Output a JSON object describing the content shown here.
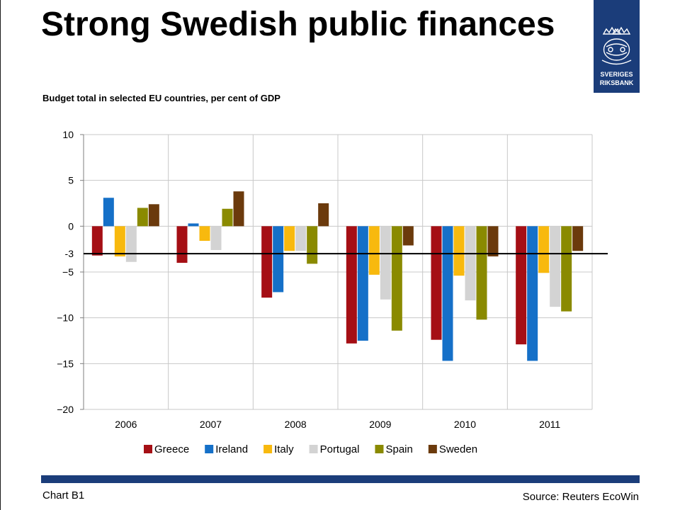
{
  "header": {
    "title": "Strong Swedish public finances",
    "subtitle": "Budget total in selected EU countries, per cent of GDP"
  },
  "logo": {
    "icon": "riksbank-crest-icon",
    "line1": "SVERIGES",
    "line2": "RIKSBANK",
    "color": "#1b3d7a"
  },
  "footer": {
    "chart_label": "Chart B1",
    "source": "Source: Reuters EcoWin"
  },
  "chart_data": {
    "type": "bar",
    "title": "",
    "xlabel": "",
    "ylabel": "",
    "categories": [
      "2006",
      "2007",
      "2008",
      "2009",
      "2010",
      "2011"
    ],
    "ylim": [
      -20,
      10
    ],
    "yticks": [
      10,
      5,
      0,
      -5,
      -10,
      -15,
      -20
    ],
    "grid": true,
    "legend_position": "bottom",
    "reference_line": {
      "value": -3,
      "label": "-3"
    },
    "series": [
      {
        "name": "Greece",
        "color": "#a50f15",
        "values": [
          -3.2,
          -4.0,
          -7.8,
          -12.8,
          -12.4,
          -12.9
        ]
      },
      {
        "name": "Ireland",
        "color": "#1570c8",
        "values": [
          3.1,
          0.3,
          -7.2,
          -12.5,
          -14.7,
          -14.7
        ]
      },
      {
        "name": "Italy",
        "color": "#f8b90e",
        "values": [
          -3.3,
          -1.6,
          -2.7,
          -5.3,
          -5.4,
          -5.1
        ]
      },
      {
        "name": "Portugal",
        "color": "#d3d3d3",
        "values": [
          -3.9,
          -2.6,
          -2.7,
          -8.0,
          -8.1,
          -8.8
        ]
      },
      {
        "name": "Spain",
        "color": "#8a8a00",
        "values": [
          2.0,
          1.9,
          -4.1,
          -11.4,
          -10.2,
          -9.3
        ]
      },
      {
        "name": "Sweden",
        "color": "#6b3a0c",
        "values": [
          2.4,
          3.8,
          2.5,
          -2.1,
          -3.3,
          -2.7
        ]
      }
    ]
  }
}
